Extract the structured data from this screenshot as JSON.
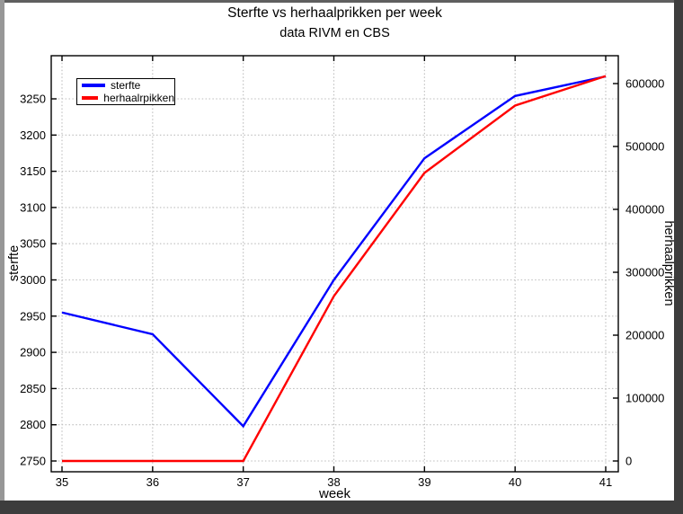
{
  "window": {
    "background": "#ffffff",
    "frame_top_color": "#5f5f5f",
    "frame_side_color": "#979797",
    "frame_shadow_color": "#3d3d3d"
  },
  "chart_data": {
    "type": "line",
    "title": "Sterfte vs herhaalprikken per week",
    "subtitle": "data RIVM en CBS",
    "xlabel": "week",
    "x": [
      35,
      36,
      37,
      38,
      39,
      40,
      41
    ],
    "xlim": [
      35,
      41
    ],
    "grid": true,
    "grid_color": "#bdbdbd",
    "axis_color": "#000000",
    "left_axis": {
      "label": "sterfte",
      "ticks": [
        2750,
        2800,
        2850,
        2900,
        2950,
        3000,
        3050,
        3100,
        3150,
        3200,
        3250
      ],
      "ylim": [
        2750,
        3250
      ]
    },
    "right_axis": {
      "label": "herhaalprikken",
      "ticks": [
        0,
        100000,
        200000,
        300000,
        400000,
        500000,
        600000
      ],
      "ylim": [
        0,
        600000
      ]
    },
    "series": [
      {
        "name": "sterfte",
        "axis": "left",
        "color": "#0000ff",
        "values": [
          2955,
          2925,
          2798,
          3000,
          3168,
          3254,
          3281
        ]
      },
      {
        "name": "herhaalprikken",
        "axis": "right",
        "color": "#ff0000",
        "values": [
          0,
          0,
          0,
          262000,
          458000,
          565000,
          612000
        ]
      }
    ],
    "legend": {
      "position": "top-left",
      "entries": [
        {
          "label": "sterfte",
          "color": "#0000ff"
        },
        {
          "label": "herhaalrpikken",
          "color": "#ff0000"
        }
      ]
    }
  }
}
